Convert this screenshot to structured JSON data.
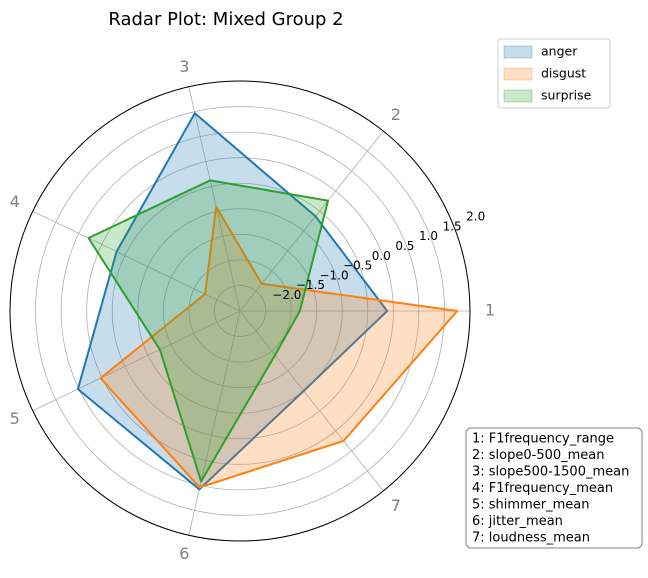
{
  "chart_data": {
    "type": "radar",
    "title": "Radar Plot: Mixed Group 2",
    "categories": [
      "1",
      "2",
      "3",
      "4",
      "5",
      "6",
      "7"
    ],
    "series": [
      {
        "name": "anger",
        "color": "#1f77b4",
        "values": [
          0.38,
          -0.13,
          1.47,
          0.18,
          1.02,
          1.08,
          -0.5
        ]
      },
      {
        "name": "disgust",
        "color": "#ff7f0e",
        "values": [
          1.75,
          -1.82,
          -0.41,
          -1.74,
          0.53,
          1.04,
          0.75
        ]
      },
      {
        "name": "surprise",
        "color": "#2ca02c",
        "values": [
          -1.33,
          0.26,
          0.12,
          0.79,
          -0.76,
          0.92,
          -1.4
        ]
      }
    ],
    "ylim": [
      -2.5,
      2.0
    ],
    "yticks": [
      {
        "value": -2,
        "label": "−2.0"
      },
      {
        "value": -1.5,
        "label": "−1.5"
      },
      {
        "value": -1,
        "label": "−1.0"
      },
      {
        "value": -0.5,
        "label": "−0.5"
      },
      {
        "value": 0,
        "label": "0.0"
      },
      0.5,
      {
        "value": 1,
        "label": "1.0"
      },
      1.5,
      {
        "value": 2,
        "label": "2.0"
      }
    ],
    "grid": true,
    "legend_position": "upper right",
    "annotation": [
      "1: F1frequency_range",
      "2: slope0-500_mean",
      "3: slope500-1500_mean",
      "4: F1frequency_mean",
      "5: shimmer_mean",
      "6: jitter_mean",
      "7: loudness_mean"
    ]
  }
}
